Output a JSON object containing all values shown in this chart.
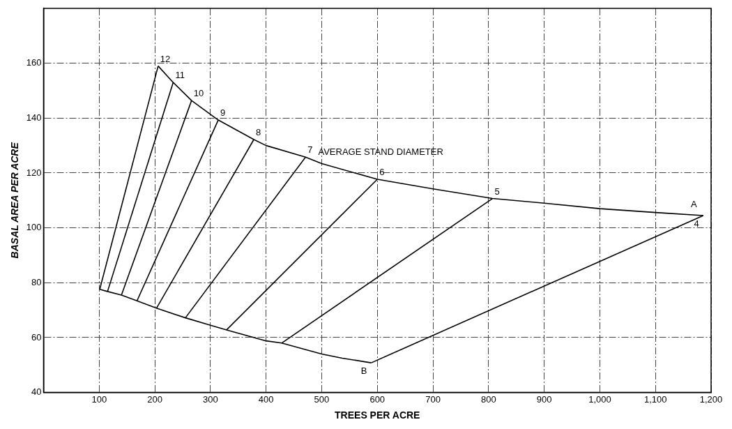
{
  "chart_data": {
    "type": "line",
    "xlabel": "TREES PER ACRE",
    "ylabel": "BASAL AREA PER ACRE",
    "xlim": [
      0,
      1200
    ],
    "ylim": [
      40,
      180
    ],
    "xticks": [
      100,
      200,
      300,
      400,
      500,
      600,
      700,
      800,
      900,
      {
        "value": 1000,
        "label": "1,000"
      },
      {
        "value": 1100,
        "label": "1,100"
      },
      {
        "value": 1200,
        "label": "1,200"
      }
    ],
    "yticks": [
      40,
      60,
      80,
      100,
      120,
      140,
      160
    ],
    "grid": true,
    "legend": false,
    "marker": "none",
    "line_style": "solid",
    "series": [
      {
        "color": "#000000",
        "x": [
          206,
          233,
          266,
          314,
          378,
          400,
          471,
          500,
          600,
          700,
          807,
          900,
          1000,
          1100,
          1186
        ],
        "values": [
          159,
          153,
          146.4,
          139.3,
          132.2,
          130,
          125.8,
          123.4,
          117.7,
          114.2,
          110.7,
          109,
          107,
          105.6,
          104.5
        ]
      },
      {
        "color": "#000000",
        "x": [
          101,
          115,
          140,
          168,
          203,
          255,
          300,
          329,
          400,
          428,
          500,
          537,
          589
        ],
        "values": [
          77.6,
          76.8,
          75.5,
          73.4,
          70.7,
          67.2,
          64.5,
          62.8,
          58.8,
          58,
          54,
          52.5,
          50.8
        ]
      },
      {
        "color": "#000000",
        "x": [
          589,
          1186
        ],
        "values": [
          50.8,
          104.5
        ]
      },
      {
        "color": "#000000",
        "x": [
          428,
          807
        ],
        "values": [
          58,
          110.7
        ]
      },
      {
        "color": "#000000",
        "x": [
          329,
          600
        ],
        "values": [
          62.8,
          117.7
        ]
      },
      {
        "color": "#000000",
        "x": [
          255,
          471
        ],
        "values": [
          67.2,
          125.8
        ]
      },
      {
        "color": "#000000",
        "x": [
          203,
          378
        ],
        "values": [
          70.7,
          132.2
        ]
      },
      {
        "color": "#000000",
        "x": [
          168,
          314
        ],
        "values": [
          73.4,
          139.3
        ]
      },
      {
        "color": "#000000",
        "x": [
          140,
          266
        ],
        "values": [
          75.5,
          146.4
        ]
      },
      {
        "color": "#000000",
        "x": [
          115,
          233
        ],
        "values": [
          76.8,
          153
        ]
      },
      {
        "color": "#000000",
        "x": [
          101,
          206
        ],
        "values": [
          77.6,
          159
        ]
      }
    ],
    "annotations": [
      {
        "text": "12",
        "x": 206,
        "y": 159
      },
      {
        "text": "11",
        "x": 233,
        "y": 153
      },
      {
        "text": "10",
        "x": 266,
        "y": 146.4
      },
      {
        "text": "9",
        "x": 314,
        "y": 139.3
      },
      {
        "text": "8",
        "x": 378,
        "y": 132.2
      },
      {
        "text": "7",
        "x": 471,
        "y": 125.8
      },
      {
        "text": "6",
        "x": 600,
        "y": 117.7
      },
      {
        "text": "5",
        "x": 807,
        "y": 110.7
      },
      {
        "text": "4",
        "x": 1186,
        "y": 104.5
      },
      {
        "text": "AVERAGE STAND DIAMETER",
        "x": 490,
        "y": 125
      },
      {
        "text": "A",
        "x": 1160,
        "y": 106
      },
      {
        "text": "B",
        "x": 589,
        "y": 50.8
      }
    ]
  }
}
